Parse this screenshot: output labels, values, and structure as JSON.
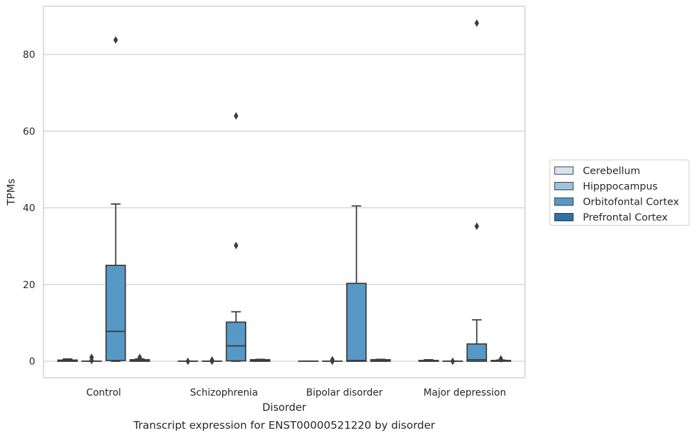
{
  "chart_data": {
    "type": "box",
    "caption": "Transcript expression for ENST00000521220 by disorder",
    "xlabel": "Disorder",
    "ylabel": "TPMs",
    "ylim": [
      -4.3,
      92.6
    ],
    "yticks": [
      0,
      20,
      40,
      60,
      80
    ],
    "grid": "horizontal",
    "legend_position": "right",
    "categories": [
      "Control",
      "Schizophrenia",
      "Bipolar disorder",
      "Major depression"
    ],
    "series": [
      {
        "name": "Cerebellum",
        "color": "#d4e3f0",
        "boxes": [
          {
            "whislo": 0,
            "q1": 0,
            "med": 0,
            "q3": 0.3,
            "whishi": 0.6,
            "fliers": []
          },
          {
            "whislo": 0,
            "q1": 0,
            "med": 0,
            "q3": 0,
            "whishi": 0,
            "fliers": [
              0
            ]
          },
          {
            "whislo": 0,
            "q1": 0,
            "med": 0,
            "q3": 0,
            "whishi": 0,
            "fliers": []
          },
          {
            "whislo": 0,
            "q1": 0,
            "med": 0,
            "q3": 0.2,
            "whishi": 0.4,
            "fliers": []
          }
        ]
      },
      {
        "name": "Hipppocampus",
        "color": "#9dc3dd",
        "boxes": [
          {
            "whislo": 0,
            "q1": 0,
            "med": 0,
            "q3": 0,
            "whishi": 0,
            "fliers": [
              0.2,
              1.0
            ]
          },
          {
            "whislo": 0,
            "q1": 0,
            "med": 0,
            "q3": 0,
            "whishi": 0,
            "fliers": [
              0,
              0.3
            ]
          },
          {
            "whislo": 0,
            "q1": 0,
            "med": 0,
            "q3": 0,
            "whishi": 0,
            "fliers": [
              0,
              0.4
            ]
          },
          {
            "whislo": 0,
            "q1": 0,
            "med": 0,
            "q3": 0,
            "whishi": 0,
            "fliers": [
              0
            ]
          }
        ]
      },
      {
        "name": "Orbitofontal Cortex",
        "color": "#5799c6",
        "boxes": [
          {
            "whislo": 0,
            "q1": 0.2,
            "med": 7.8,
            "q3": 25.0,
            "whishi": 41.0,
            "fliers": [
              83.8
            ]
          },
          {
            "whislo": 0,
            "q1": 0.1,
            "med": 4.0,
            "q3": 10.2,
            "whishi": 12.9,
            "fliers": [
              30.2,
              64.0
            ]
          },
          {
            "whislo": 0,
            "q1": 0,
            "med": 0.2,
            "q3": 20.3,
            "whishi": 40.5,
            "fliers": []
          },
          {
            "whislo": 0,
            "q1": 0,
            "med": 0.4,
            "q3": 4.5,
            "whishi": 10.8,
            "fliers": [
              35.2,
              88.2
            ]
          }
        ]
      },
      {
        "name": "Prefrontal Cortex",
        "color": "#2e6fac",
        "boxes": [
          {
            "whislo": 0,
            "q1": 0,
            "med": 0.2,
            "q3": 0.4,
            "whishi": 0.6,
            "fliers": [
              1.0
            ]
          },
          {
            "whislo": 0,
            "q1": 0,
            "med": 0.2,
            "q3": 0.4,
            "whishi": 0.5,
            "fliers": []
          },
          {
            "whislo": 0,
            "q1": 0,
            "med": 0.2,
            "q3": 0.4,
            "whishi": 0.5,
            "fliers": []
          },
          {
            "whislo": 0,
            "q1": 0,
            "med": 0.1,
            "q3": 0.2,
            "whishi": 0.3,
            "fliers": [
              0.6
            ]
          }
        ]
      }
    ]
  }
}
